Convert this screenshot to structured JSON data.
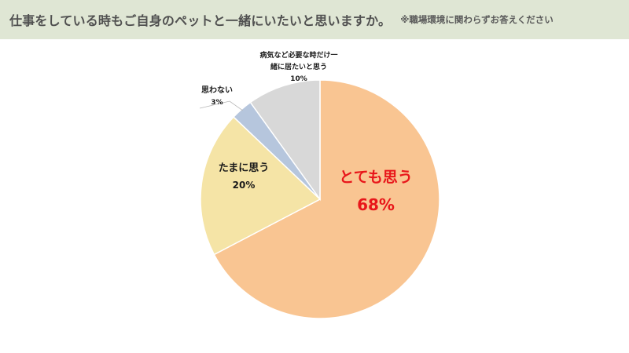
{
  "header": {
    "title": "仕事をしている時もご自身のペットと一緒にいたいと思いますか。",
    "note": "※職場環境に関わらずお答えください"
  },
  "chart_data": {
    "type": "pie",
    "title": "",
    "slices": [
      {
        "label": "とても思う",
        "label_lines": [
          "とても思う"
        ],
        "value": 68,
        "pct_text": "68%",
        "color": "#f9c592",
        "text_color": "#e8161a"
      },
      {
        "label": "たまに思う",
        "label_lines": [
          "たまに思う"
        ],
        "value": 20,
        "pct_text": "20%",
        "color": "#f5e4a6",
        "text_color": "#1a1a1a"
      },
      {
        "label": "思わない",
        "label_lines": [
          "思わない"
        ],
        "value": 3,
        "pct_text": "3%",
        "color": "#b6c6dd",
        "text_color": "#1a1a1a"
      },
      {
        "label": "病気など必要な時だけ一緒に居たいと思う",
        "label_lines": [
          "病気など必要な時だけ一",
          "緒に居たいと思う"
        ],
        "value": 10,
        "pct_text": "10%",
        "color": "#d8d8d8",
        "text_color": "#1a1a1a"
      }
    ],
    "start_angle_deg": 0,
    "direction": "clockwise",
    "legend": "none",
    "data_labels": true
  }
}
